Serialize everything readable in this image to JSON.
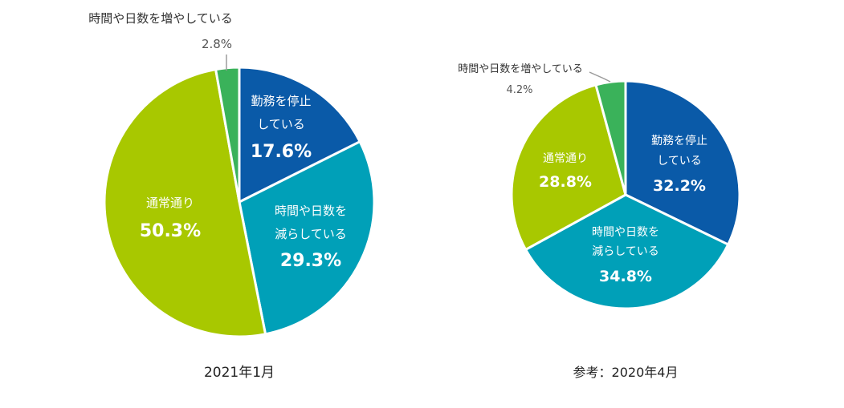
{
  "chart_data": [
    {
      "type": "pie",
      "title": "2021年1月",
      "slices": [
        {
          "label_lines": [
            "勤務を停止",
            "している"
          ],
          "value": 17.6,
          "value_label": "17.6%",
          "color": "#0a5aa8"
        },
        {
          "label_lines": [
            "時間や日数を",
            "減らしている"
          ],
          "value": 29.3,
          "value_label": "29.3%",
          "color": "#00a0b8"
        },
        {
          "label_lines": [
            "通常通り"
          ],
          "value": 50.3,
          "value_label": "50.3%",
          "color": "#a8c800"
        },
        {
          "label_lines": [
            "時間や日数を増やしている"
          ],
          "value": 2.8,
          "value_label": "2.8%",
          "color": "#3ab25a"
        }
      ]
    },
    {
      "type": "pie",
      "title": "参考：2020年4月",
      "slices": [
        {
          "label_lines": [
            "勤務を停止",
            "している"
          ],
          "value": 32.2,
          "value_label": "32.2%",
          "color": "#0a5aa8"
        },
        {
          "label_lines": [
            "時間や日数を",
            "減らしている"
          ],
          "value": 34.8,
          "value_label": "34.8%",
          "color": "#00a0b8"
        },
        {
          "label_lines": [
            "通常通り"
          ],
          "value": 28.8,
          "value_label": "28.8%",
          "color": "#a8c800"
        },
        {
          "label_lines": [
            "時間や日数を増やしている"
          ],
          "value": 4.2,
          "value_label": "4.2%",
          "color": "#3ab25a"
        }
      ]
    }
  ]
}
